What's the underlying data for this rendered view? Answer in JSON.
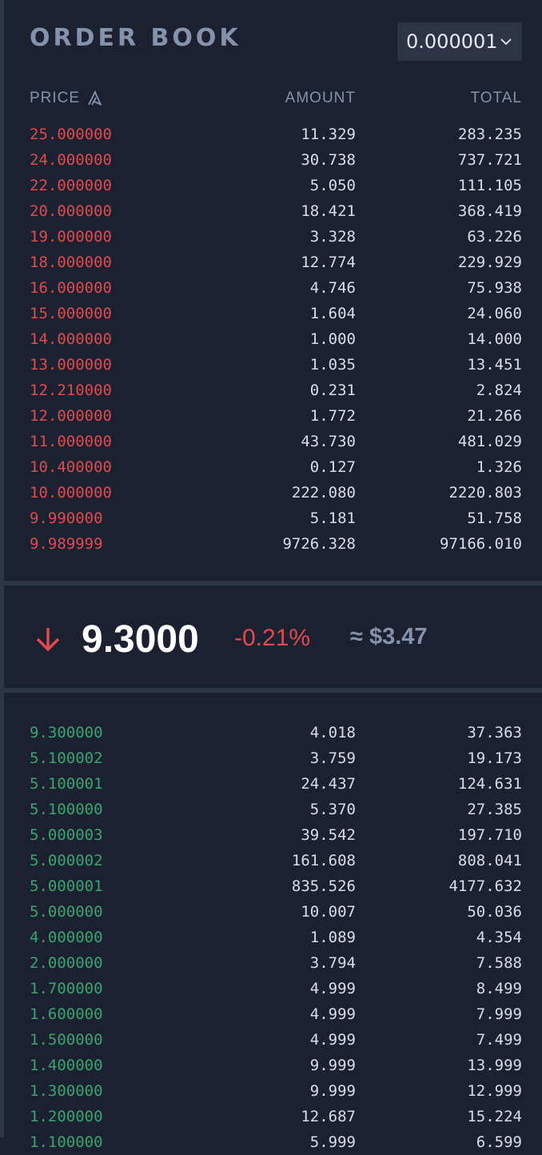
{
  "header": {
    "title": "ORDER BOOK",
    "precision": "0.000001"
  },
  "columns": {
    "price": "PRICE",
    "amount": "AMOUNT",
    "total": "TOTAL"
  },
  "asks": [
    {
      "price": "25.000000",
      "amount": "11.329",
      "total": "283.235"
    },
    {
      "price": "24.000000",
      "amount": "30.738",
      "total": "737.721"
    },
    {
      "price": "22.000000",
      "amount": "5.050",
      "total": "111.105"
    },
    {
      "price": "20.000000",
      "amount": "18.421",
      "total": "368.419"
    },
    {
      "price": "19.000000",
      "amount": "3.328",
      "total": "63.226"
    },
    {
      "price": "18.000000",
      "amount": "12.774",
      "total": "229.929"
    },
    {
      "price": "16.000000",
      "amount": "4.746",
      "total": "75.938"
    },
    {
      "price": "15.000000",
      "amount": "1.604",
      "total": "24.060"
    },
    {
      "price": "14.000000",
      "amount": "1.000",
      "total": "14.000"
    },
    {
      "price": "13.000000",
      "amount": "1.035",
      "total": "13.451"
    },
    {
      "price": "12.210000",
      "amount": "0.231",
      "total": "2.824"
    },
    {
      "price": "12.000000",
      "amount": "1.772",
      "total": "21.266"
    },
    {
      "price": "11.000000",
      "amount": "43.730",
      "total": "481.029"
    },
    {
      "price": "10.400000",
      "amount": "0.127",
      "total": "1.326"
    },
    {
      "price": "10.000000",
      "amount": "222.080",
      "total": "2220.803"
    },
    {
      "price": "9.990000",
      "amount": "5.181",
      "total": "51.758"
    },
    {
      "price": "9.989999",
      "amount": "9726.328",
      "total": "97166.010"
    }
  ],
  "ticker": {
    "direction_icon": "arrow-down-icon",
    "last_price": "9.3000",
    "change": "-0.21%",
    "usd": "≈ $3.47"
  },
  "bids": [
    {
      "price": "9.300000",
      "amount": "4.018",
      "total": "37.363"
    },
    {
      "price": "5.100002",
      "amount": "3.759",
      "total": "19.173"
    },
    {
      "price": "5.100001",
      "amount": "24.437",
      "total": "124.631"
    },
    {
      "price": "5.100000",
      "amount": "5.370",
      "total": "27.385"
    },
    {
      "price": "5.000003",
      "amount": "39.542",
      "total": "197.710"
    },
    {
      "price": "5.000002",
      "amount": "161.608",
      "total": "808.041"
    },
    {
      "price": "5.000001",
      "amount": "835.526",
      "total": "4177.632"
    },
    {
      "price": "5.000000",
      "amount": "10.007",
      "total": "50.036"
    },
    {
      "price": "4.000000",
      "amount": "1.089",
      "total": "4.354"
    },
    {
      "price": "2.000000",
      "amount": "3.794",
      "total": "7.588"
    },
    {
      "price": "1.700000",
      "amount": "4.999",
      "total": "8.499"
    },
    {
      "price": "1.600000",
      "amount": "4.999",
      "total": "7.999"
    },
    {
      "price": "1.500000",
      "amount": "4.999",
      "total": "7.499"
    },
    {
      "price": "1.400000",
      "amount": "9.999",
      "total": "13.999"
    },
    {
      "price": "1.300000",
      "amount": "9.999",
      "total": "12.999"
    },
    {
      "price": "1.200000",
      "amount": "12.687",
      "total": "15.224"
    },
    {
      "price": "1.100000",
      "amount": "5.999",
      "total": "6.599"
    }
  ],
  "colors": {
    "background": "#1b2130",
    "ask": "#e04a4e",
    "bid": "#39a56d",
    "muted": "#8592ab"
  }
}
